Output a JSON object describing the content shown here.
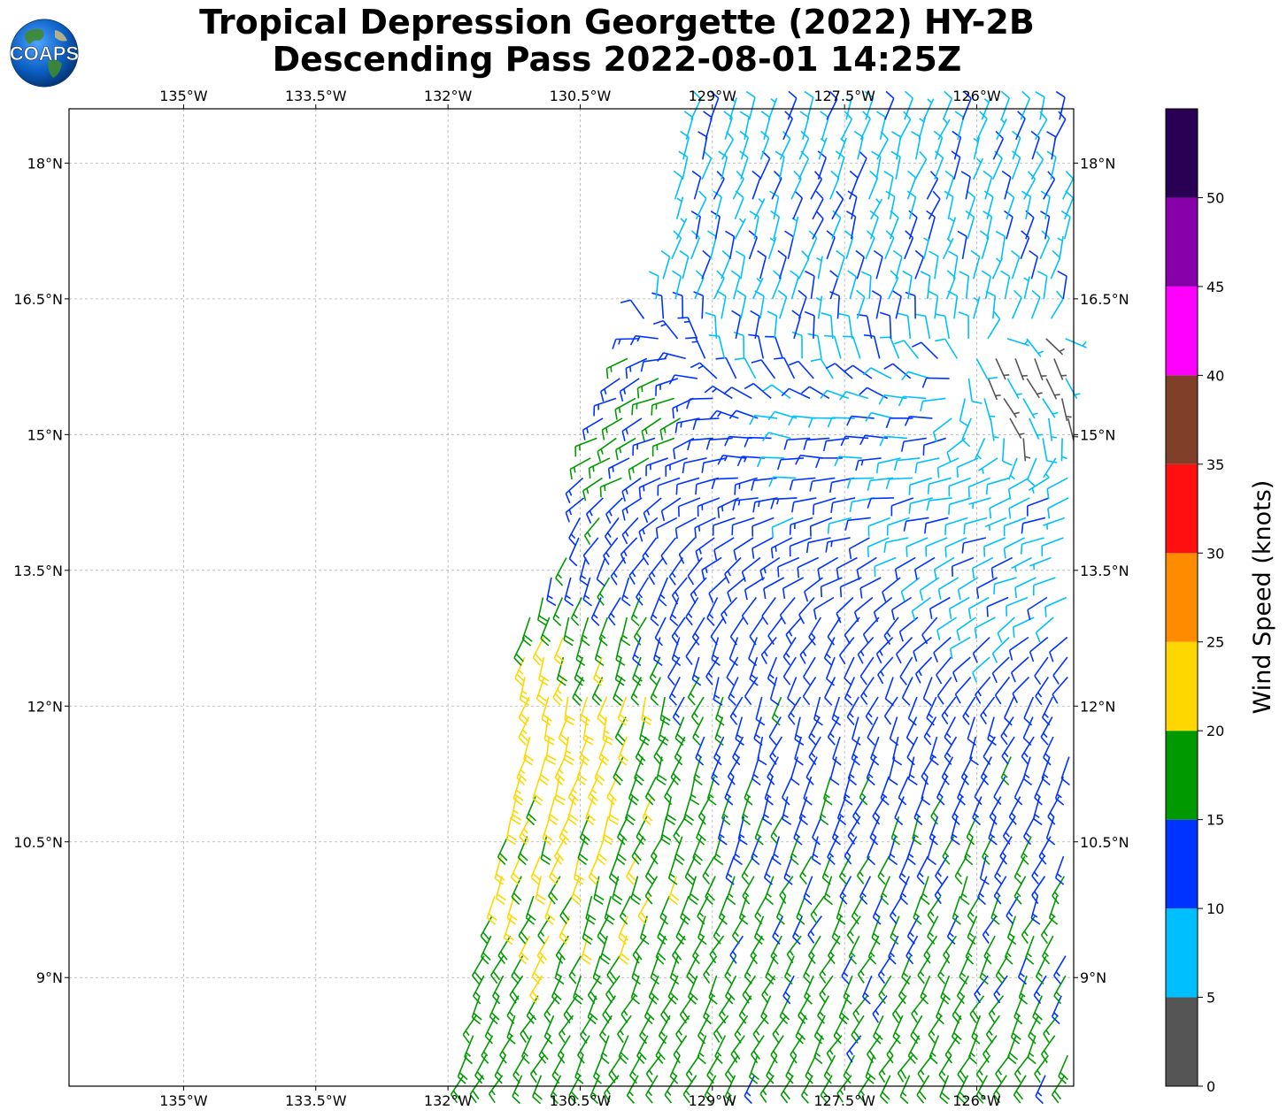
{
  "title": {
    "line1": "Tropical Depression Georgette (2022) HY-2B",
    "line2": "Descending Pass 2022-08-01 14:25Z"
  },
  "logo": {
    "text": "COAPS",
    "icon": "globe-logo-icon"
  },
  "map": {
    "lon_range": [
      -136.3,
      -124.9
    ],
    "lat_range": [
      7.8,
      18.6
    ],
    "lon_ticks": [
      {
        "value": -135,
        "label": "135°W"
      },
      {
        "value": -133.5,
        "label": "133.5°W"
      },
      {
        "value": -132,
        "label": "132°W"
      },
      {
        "value": -130.5,
        "label": "130.5°W"
      },
      {
        "value": -129,
        "label": "129°W"
      },
      {
        "value": -127.5,
        "label": "127.5°W"
      },
      {
        "value": -126,
        "label": "126°W"
      }
    ],
    "lat_ticks": [
      {
        "value": 18,
        "label": "18°N"
      },
      {
        "value": 16.5,
        "label": "16.5°N"
      },
      {
        "value": 15,
        "label": "15°N"
      },
      {
        "value": 13.5,
        "label": "13.5°N"
      },
      {
        "value": 12,
        "label": "12°N"
      },
      {
        "value": 10.5,
        "label": "10.5°N"
      },
      {
        "value": 9,
        "label": "9°N"
      }
    ],
    "gridlines": true,
    "swath_west_edge": [
      [
        -131.9,
        7.8
      ],
      [
        -131.6,
        9.2
      ],
      [
        -131.4,
        10.5
      ],
      [
        -131.1,
        11.8
      ],
      [
        -131.2,
        12.9
      ],
      [
        -130.6,
        13.8
      ],
      [
        -130.5,
        14.6
      ],
      [
        -130.0,
        15.8
      ],
      [
        -129.5,
        17.0
      ],
      [
        -129.3,
        18.6
      ]
    ],
    "wind_barbs": {
      "units": "knots",
      "spacing_deg": 0.22,
      "regions": [
        {
          "name": "calm-core",
          "lon": -125.6,
          "lat": 15.3,
          "radius": 0.5,
          "speed": 4,
          "dir": 150
        },
        {
          "name": "north-light",
          "lon": -128.0,
          "lat": 17.2,
          "radius": 1.6,
          "speed": 9,
          "dir": 20
        },
        {
          "name": "convergence-line",
          "lon": -127.5,
          "lat": 14.4,
          "radius": 1.3,
          "speed": 11,
          "dir": 270
        },
        {
          "name": "east-light",
          "lon": -126.0,
          "lat": 13.7,
          "radius": 1.0,
          "speed": 8,
          "dir": 250
        },
        {
          "name": "west-strong",
          "lon": -130.6,
          "lat": 11.5,
          "radius": 0.9,
          "speed": 24,
          "dir": 195
        },
        {
          "name": "west-moderate",
          "lon": -130.2,
          "lat": 10.5,
          "radius": 1.2,
          "speed": 21,
          "dir": 200
        },
        {
          "name": "south-band",
          "lon": -128.5,
          "lat": 8.6,
          "radius": 2.2,
          "speed": 17,
          "dir": 210
        },
        {
          "name": "central",
          "lon": -127.8,
          "lat": 11.8,
          "radius": 2.0,
          "speed": 13,
          "dir": 200
        },
        {
          "name": "northwest-band",
          "lon": -129.8,
          "lat": 15.3,
          "radius": 0.7,
          "speed": 16,
          "dir": 240
        }
      ]
    }
  },
  "colorbar": {
    "label": "Wind Speed (knots)",
    "bins": [
      {
        "min": 0,
        "max": 5,
        "color": "#555555"
      },
      {
        "min": 5,
        "max": 10,
        "color": "#00bfff"
      },
      {
        "min": 10,
        "max": 15,
        "color": "#0033ff"
      },
      {
        "min": 15,
        "max": 20,
        "color": "#009900"
      },
      {
        "min": 20,
        "max": 25,
        "color": "#ffd700"
      },
      {
        "min": 25,
        "max": 30,
        "color": "#ff8c00"
      },
      {
        "min": 30,
        "max": 35,
        "color": "#ff0f0f"
      },
      {
        "min": 35,
        "max": 40,
        "color": "#7f3f28"
      },
      {
        "min": 40,
        "max": 45,
        "color": "#ff00ff"
      },
      {
        "min": 45,
        "max": 50,
        "color": "#8800aa"
      },
      {
        "min": 50,
        "max": 55,
        "color": "#2a0055"
      }
    ],
    "ticks": [
      "0",
      "5",
      "10",
      "15",
      "20",
      "25",
      "30",
      "35",
      "40",
      "45",
      "50"
    ]
  }
}
